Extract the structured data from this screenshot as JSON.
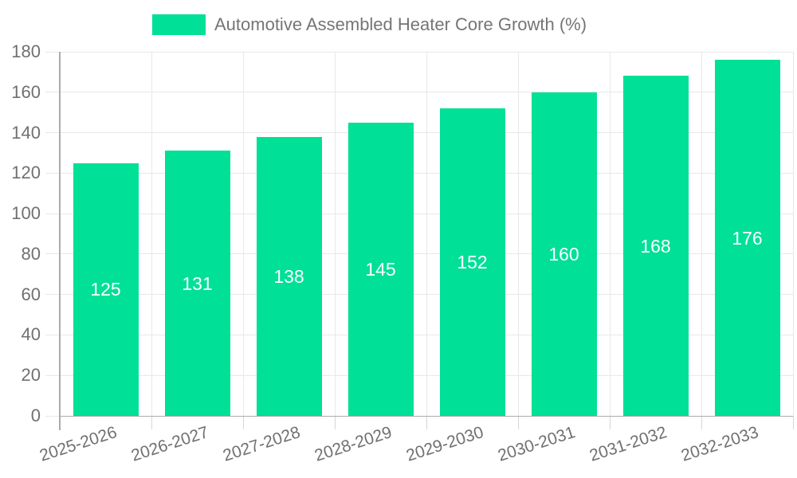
{
  "legend": {
    "label": "Automotive Assembled Heater Core Growth (%)"
  },
  "colors": {
    "bar": "#00E096",
    "grid": "#e8e8e8",
    "axis": "#ababab",
    "tick": "#d6d6d6",
    "axis_label": "#707070",
    "legend_text": "#757575",
    "value_label": "#ffffff",
    "background": "#ffffff"
  },
  "chart_data": {
    "type": "bar",
    "title": "Automotive Assembled Heater Core Growth (%)",
    "categories": [
      "2025-2026",
      "2026-2027",
      "2027-2028",
      "2028-2029",
      "2029-2030",
      "2030-2031",
      "2031-2032",
      "2032-2033"
    ],
    "values": [
      125,
      131,
      138,
      145,
      152,
      160,
      168,
      176
    ],
    "xlabel": "",
    "ylabel": "",
    "ylim": [
      0,
      180
    ],
    "ytick_step": 20,
    "ytick_labels": [
      "0",
      "20",
      "40",
      "60",
      "80",
      "100",
      "120",
      "140",
      "160",
      "180"
    ],
    "grid": true,
    "legend_position": "top",
    "value_labels": "inside-middle"
  }
}
